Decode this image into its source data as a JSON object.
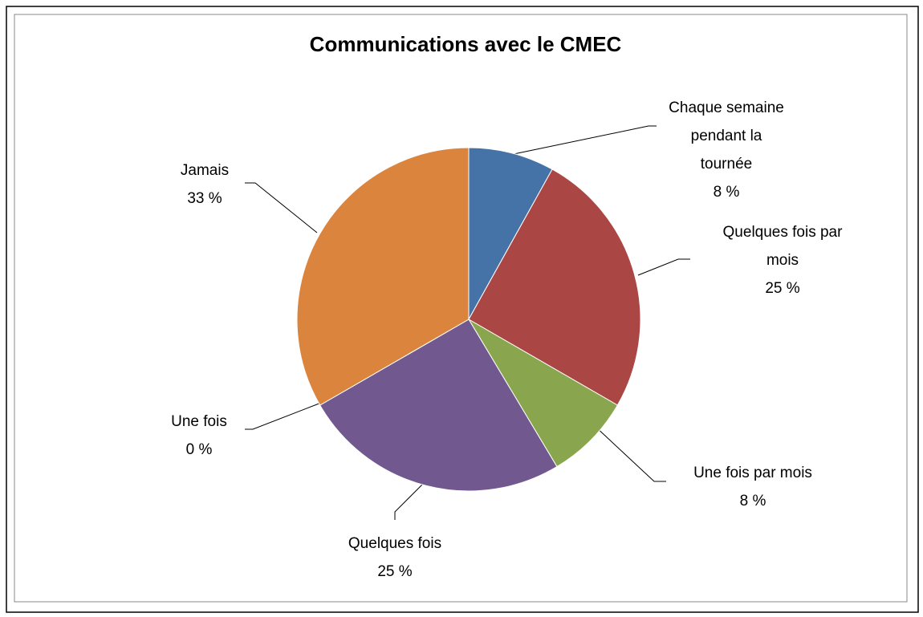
{
  "chart_data": {
    "type": "pie",
    "title": "Communications avec le CMEC",
    "categories": [
      "Chaque semaine pendant la tournée",
      "Quelques fois par mois",
      "Une fois par mois",
      "Quelques fois",
      "Une fois",
      "Jamais"
    ],
    "values": [
      8,
      25,
      8,
      25,
      0,
      33
    ],
    "value_labels": [
      "8 %",
      "25 %",
      "8 %",
      "25 %",
      "0 %",
      "33 %"
    ],
    "colors": [
      "#4572a7",
      "#aa4643",
      "#89a54e",
      "#71588f",
      "#4198af",
      "#db843d"
    ]
  }
}
